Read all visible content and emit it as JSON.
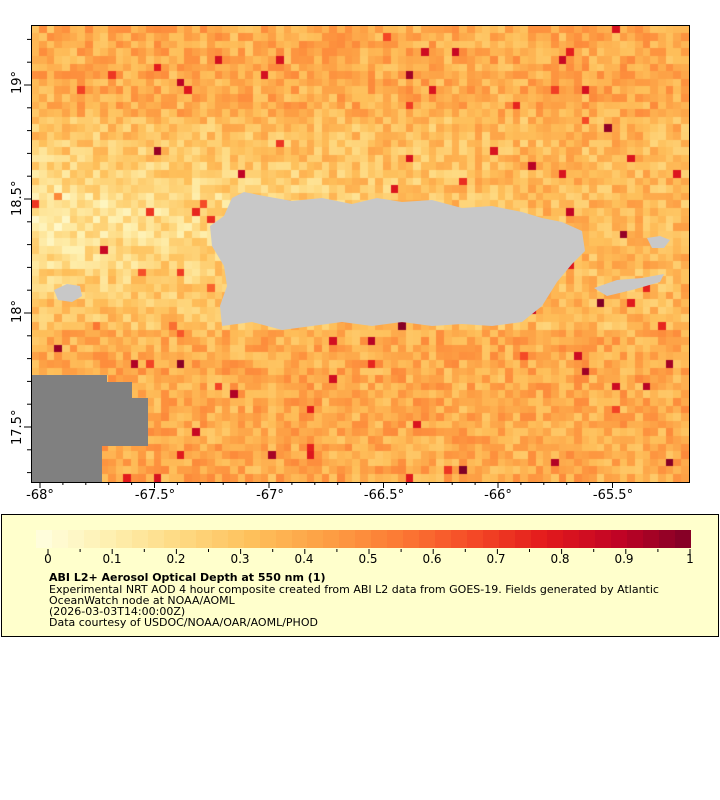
{
  "map": {
    "x_ticks": [
      "-68°",
      "-67.5°",
      "-67°",
      "-66.5°",
      "-66°",
      "-65.5°"
    ],
    "x_tick_values": [
      -68,
      -67.5,
      -67,
      -66.5,
      -66,
      -65.5
    ],
    "y_ticks": [
      "19°",
      "18.5°",
      "18°",
      "17.5°"
    ],
    "y_tick_values": [
      19,
      18.5,
      18,
      17.5
    ],
    "lon_range": [
      -68.04,
      -65.2
    ],
    "lat_range": [
      17.25,
      19.25
    ],
    "land_color": "#c8c8c8",
    "nodata_color": "#808080"
  },
  "legend": {
    "colorbar_ticks": [
      "0",
      "0.1",
      "0.2",
      "0.3",
      "0.4",
      "0.5",
      "0.6",
      "0.7",
      "0.8",
      "0.9",
      "1"
    ],
    "colorbar_range": [
      0,
      1
    ],
    "colorbar_colors": [
      "#ffffe0",
      "#fef0b0",
      "#fed981",
      "#febf5a",
      "#fd9f44",
      "#fc7a34",
      "#f54a26",
      "#e31a1c",
      "#c10325",
      "#800026"
    ],
    "title": "ABI L2+ Aerosol Optical Depth at 550 nm (1)",
    "line1": "Experimental NRT AOD 4 hour composite created from ABI L2 data from GOES-19. Fields generated by Atlantic",
    "line2": "OceanWatch node at NOAA/AOML",
    "line3": "(2026-03-03T14:00:00Z)",
    "line4": "Data courtesy of USDOC/NOAA/OAR/AOML/PHOD"
  }
}
